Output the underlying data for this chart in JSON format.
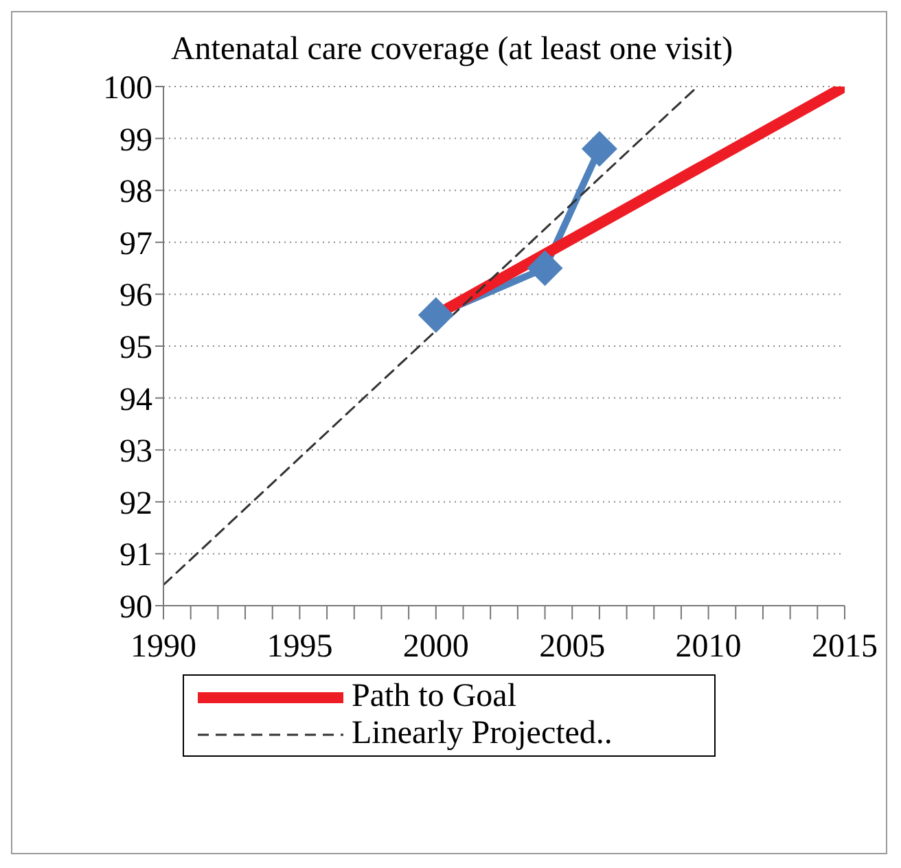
{
  "chart_data": {
    "type": "line",
    "title": "Antenatal care coverage (at least one visit)",
    "series": [
      {
        "color": "#4f81bd",
        "marker": "diamond",
        "line_style": "solid",
        "x": [
          2000,
          2004,
          2006
        ],
        "values": [
          95.6,
          96.5,
          98.8
        ]
      },
      {
        "name": "Path to Goal",
        "color": "#ee1c25",
        "marker": "none",
        "line_style": "solid",
        "x": [
          2000,
          2015
        ],
        "values": [
          95.6,
          100
        ]
      },
      {
        "name": "Linearly Projected..",
        "color": "#333333",
        "marker": "none",
        "line_style": "dashed",
        "x": [
          1990,
          2009.6
        ],
        "values": [
          90.4,
          100
        ]
      }
    ],
    "xlim": [
      1990,
      2015
    ],
    "xticks": [
      1990,
      {
        "value": 1991,
        "label": null
      },
      {
        "value": 1992,
        "label": null
      },
      {
        "value": 1993,
        "label": null
      },
      {
        "value": 1994,
        "label": null
      },
      1995,
      {
        "value": 1996,
        "label": null
      },
      {
        "value": 1997,
        "label": null
      },
      {
        "value": 1998,
        "label": null
      },
      {
        "value": 1999,
        "label": null
      },
      2000,
      {
        "value": 2001,
        "label": null
      },
      {
        "value": 2002,
        "label": null
      },
      {
        "value": 2003,
        "label": null
      },
      {
        "value": 2004,
        "label": null
      },
      2005,
      {
        "value": 2006,
        "label": null
      },
      {
        "value": 2007,
        "label": null
      },
      {
        "value": 2008,
        "label": null
      },
      {
        "value": 2009,
        "label": null
      },
      2010,
      {
        "value": 2011,
        "label": null
      },
      {
        "value": 2012,
        "label": null
      },
      {
        "value": 2013,
        "label": null
      },
      {
        "value": 2014,
        "label": null
      },
      2015
    ],
    "ylim": [
      90,
      100
    ],
    "yticks": [
      90,
      91,
      92,
      93,
      94,
      95,
      96,
      97,
      98,
      99,
      100
    ],
    "grid": "y",
    "legend": "bottom"
  }
}
